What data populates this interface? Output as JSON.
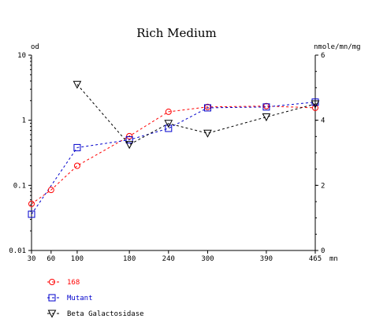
{
  "chart_data": {
    "type": "line",
    "title": "Rich Medium",
    "xlabel": "mn",
    "ylabel_left": "od",
    "ylabel_right": "nmole/mn/mg",
    "x_ticks": [
      30,
      60,
      100,
      180,
      240,
      300,
      390,
      465
    ],
    "xlim": [
      30,
      465
    ],
    "y_left": {
      "scale": "log",
      "ylim": [
        0.01,
        10
      ],
      "ticks": [
        "0.01",
        "0.1",
        "1",
        "10"
      ]
    },
    "y_right": {
      "scale": "linear",
      "ylim": [
        0,
        6
      ],
      "ticks": [
        "0",
        "2",
        "4",
        "6"
      ]
    },
    "grid": false,
    "legend_position": "bottom-left",
    "series": [
      {
        "name": "168",
        "axis": "left",
        "color": "#ff0000",
        "marker": "circle",
        "x": [
          30,
          60,
          100,
          180,
          240,
          300,
          390,
          465
        ],
        "y": [
          0.052,
          0.085,
          0.2,
          0.57,
          1.35,
          1.6,
          1.65,
          1.55
        ]
      },
      {
        "name": "Mutant",
        "axis": "left",
        "color": "#0000cc",
        "marker": "square",
        "x": [
          30,
          100,
          180,
          240,
          300,
          390,
          465
        ],
        "y": [
          0.036,
          0.38,
          0.5,
          0.75,
          1.55,
          1.6,
          1.9
        ]
      },
      {
        "name": "Beta Galactosidase",
        "axis": "right",
        "color": "#000000",
        "marker": "triangle-down",
        "x": [
          100,
          180,
          240,
          300,
          390,
          465
        ],
        "y": [
          5.1,
          3.25,
          3.9,
          3.6,
          4.1,
          4.5
        ]
      }
    ]
  }
}
